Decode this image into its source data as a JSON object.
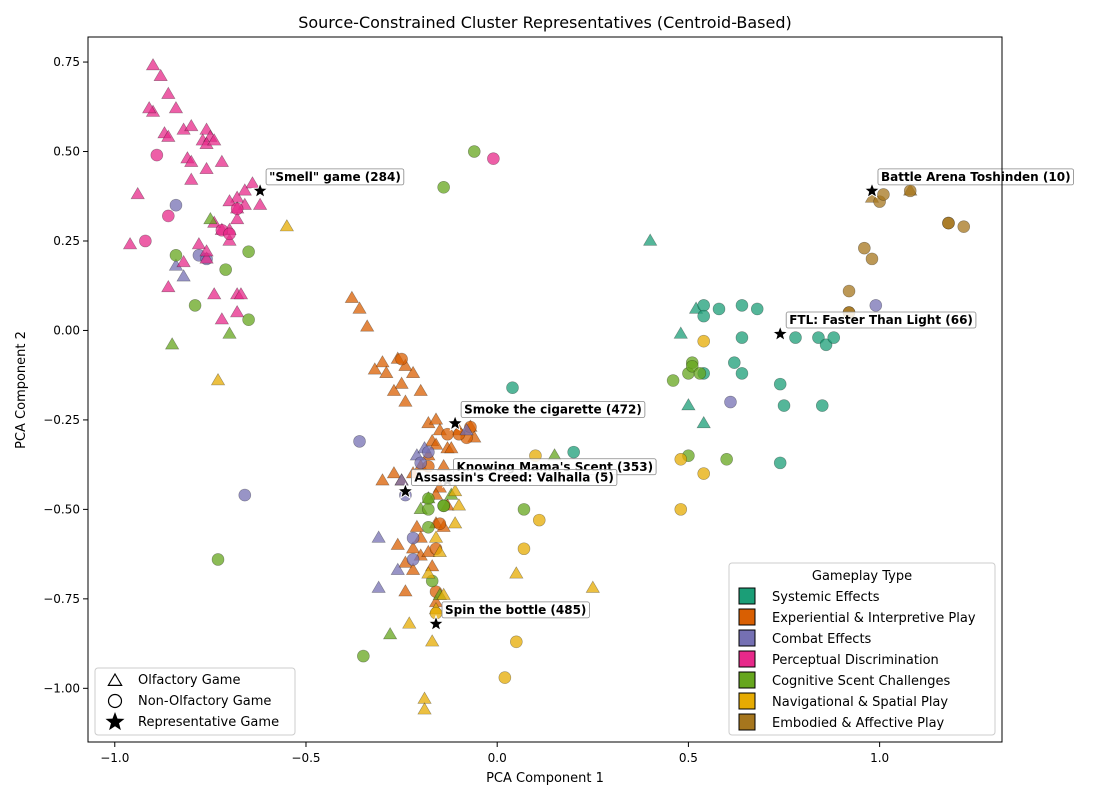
{
  "chart_data": {
    "type": "scatter",
    "title": "Source-Constrained Cluster Representatives (Centroid-Based)",
    "xlabel": "PCA Component 1",
    "ylabel": "PCA Component 2",
    "xlim": [
      -1.07,
      1.32
    ],
    "ylim": [
      -1.15,
      0.82
    ],
    "xticks": [
      "−1.0",
      "−0.5",
      "0.0",
      "0.5",
      "1.0"
    ],
    "xtick_values": [
      -1.0,
      -0.5,
      0.0,
      0.5,
      1.0
    ],
    "yticks": [
      "−1.00",
      "−0.75",
      "−0.50",
      "−0.25",
      "0.00",
      "0.25",
      "0.50",
      "0.75"
    ],
    "ytick_values": [
      -1.0,
      -0.75,
      -0.5,
      -0.25,
      0.0,
      0.25,
      0.5,
      0.75
    ],
    "grid": false,
    "legend_gameplay": {
      "title": "Gameplay Type",
      "placement": "bottom-right",
      "items": [
        {
          "label": "Systemic Effects",
          "color": "#1b9e77"
        },
        {
          "label": "Experiential & Interpretive Play",
          "color": "#d95f02"
        },
        {
          "label": "Combat Effects",
          "color": "#7570b3"
        },
        {
          "label": "Perceptual Discrimination",
          "color": "#e7298a"
        },
        {
          "label": "Cognitive Scent Challenges",
          "color": "#66a61e"
        },
        {
          "label": "Navigational & Spatial Play",
          "color": "#e6ab02"
        },
        {
          "label": "Embodied & Affective Play",
          "color": "#a6761d"
        }
      ]
    },
    "legend_markers": {
      "placement": "bottom-left",
      "items": [
        {
          "label": "Olfactory Game",
          "marker": "triangle"
        },
        {
          "label": "Non-Olfactory Game",
          "marker": "circle"
        },
        {
          "label": "Representative Game",
          "marker": "star"
        }
      ]
    },
    "series": [
      {
        "color": "#1b9e77",
        "triangles": [
          [
            0.4,
            0.25
          ],
          [
            0.48,
            -0.01
          ],
          [
            0.52,
            0.06
          ],
          [
            0.5,
            -0.21
          ],
          [
            0.54,
            -0.26
          ]
        ],
        "circles": [
          [
            0.54,
            0.07
          ],
          [
            0.54,
            0.04
          ],
          [
            0.58,
            0.06
          ],
          [
            0.64,
            0.07
          ],
          [
            0.68,
            0.06
          ],
          [
            0.64,
            -0.02
          ],
          [
            0.62,
            -0.09
          ],
          [
            0.64,
            -0.12
          ],
          [
            0.78,
            -0.02
          ],
          [
            0.84,
            -0.02
          ],
          [
            0.86,
            -0.04
          ],
          [
            0.88,
            -0.02
          ],
          [
            0.74,
            -0.15
          ],
          [
            0.75,
            -0.21
          ],
          [
            0.85,
            -0.21
          ],
          [
            0.74,
            -0.37
          ],
          [
            0.2,
            -0.34
          ],
          [
            0.04,
            -0.16
          ],
          [
            0.54,
            -0.12
          ]
        ]
      },
      {
        "color": "#d95f02",
        "triangles": [
          [
            -0.38,
            0.09
          ],
          [
            -0.36,
            0.06
          ],
          [
            -0.34,
            0.01
          ],
          [
            -0.3,
            -0.09
          ],
          [
            -0.32,
            -0.11
          ],
          [
            -0.29,
            -0.12
          ],
          [
            -0.26,
            -0.08
          ],
          [
            -0.24,
            -0.1
          ],
          [
            -0.22,
            -0.12
          ],
          [
            -0.25,
            -0.15
          ],
          [
            -0.27,
            -0.17
          ],
          [
            -0.24,
            -0.2
          ],
          [
            -0.2,
            -0.17
          ],
          [
            -0.18,
            -0.26
          ],
          [
            -0.16,
            -0.25
          ],
          [
            -0.17,
            -0.31
          ],
          [
            -0.15,
            -0.28
          ],
          [
            -0.13,
            -0.33
          ],
          [
            -0.18,
            -0.35
          ],
          [
            -0.14,
            -0.38
          ],
          [
            -0.2,
            -0.38
          ],
          [
            -0.22,
            -0.4
          ],
          [
            -0.25,
            -0.42
          ],
          [
            -0.27,
            -0.4
          ],
          [
            -0.3,
            -0.42
          ],
          [
            -0.16,
            -0.54
          ],
          [
            -0.14,
            -0.55
          ],
          [
            -0.2,
            -0.58
          ],
          [
            -0.21,
            -0.55
          ],
          [
            -0.22,
            -0.61
          ],
          [
            -0.2,
            -0.63
          ],
          [
            -0.24,
            -0.65
          ],
          [
            -0.22,
            -0.67
          ],
          [
            -0.26,
            -0.6
          ],
          [
            -0.17,
            -0.66
          ],
          [
            -0.24,
            -0.73
          ],
          [
            -0.16,
            -0.76
          ],
          [
            -0.18,
            -0.62
          ],
          [
            -0.16,
            -0.32
          ],
          [
            -0.12,
            -0.33
          ],
          [
            -0.06,
            -0.3
          ],
          [
            -0.1,
            -0.28
          ],
          [
            -0.07,
            -0.27
          ],
          [
            -0.15,
            -0.44
          ],
          [
            -0.16,
            -0.46
          ],
          [
            -0.13,
            -0.49
          ]
        ],
        "circles": [
          [
            -0.25,
            -0.08
          ],
          [
            -0.07,
            -0.27
          ],
          [
            -0.18,
            -0.38
          ],
          [
            -0.08,
            -0.3
          ],
          [
            -0.15,
            -0.54
          ],
          [
            -0.16,
            -0.61
          ],
          [
            -0.16,
            -0.73
          ],
          [
            -0.1,
            -0.29
          ],
          [
            -0.13,
            -0.29
          ]
        ]
      },
      {
        "color": "#7570b3",
        "triangles": [
          [
            -0.84,
            0.18
          ],
          [
            -0.82,
            0.15
          ],
          [
            -0.21,
            -0.35
          ],
          [
            -0.19,
            -0.33
          ],
          [
            -0.25,
            -0.42
          ],
          [
            -0.31,
            -0.58
          ],
          [
            -0.26,
            -0.67
          ],
          [
            -0.31,
            -0.72
          ],
          [
            -0.08,
            -0.28
          ]
        ],
        "circles": [
          [
            -0.84,
            0.35
          ],
          [
            -0.78,
            0.21
          ],
          [
            -0.76,
            0.2
          ],
          [
            -0.36,
            -0.31
          ],
          [
            -0.66,
            -0.46
          ],
          [
            -0.2,
            -0.37
          ],
          [
            -0.18,
            -0.34
          ],
          [
            -0.24,
            -0.46
          ],
          [
            -0.22,
            -0.64
          ],
          [
            -0.22,
            -0.58
          ],
          [
            0.61,
            -0.2
          ],
          [
            0.99,
            0.07
          ]
        ]
      },
      {
        "color": "#e7298a",
        "triangles": [
          [
            -0.9,
            0.74
          ],
          [
            -0.88,
            0.71
          ],
          [
            -0.86,
            0.66
          ],
          [
            -0.84,
            0.62
          ],
          [
            -0.9,
            0.61
          ],
          [
            -0.87,
            0.55
          ],
          [
            -0.86,
            0.54
          ],
          [
            -0.82,
            0.56
          ],
          [
            -0.8,
            0.57
          ],
          [
            -0.81,
            0.48
          ],
          [
            -0.8,
            0.47
          ],
          [
            -0.76,
            0.56
          ],
          [
            -0.77,
            0.53
          ],
          [
            -0.75,
            0.54
          ],
          [
            -0.76,
            0.52
          ],
          [
            -0.74,
            0.53
          ],
          [
            -0.72,
            0.47
          ],
          [
            -0.76,
            0.45
          ],
          [
            -0.8,
            0.42
          ],
          [
            -0.64,
            0.41
          ],
          [
            -0.66,
            0.39
          ],
          [
            -0.68,
            0.37
          ],
          [
            -0.7,
            0.36
          ],
          [
            -0.66,
            0.35
          ],
          [
            -0.62,
            0.35
          ],
          [
            -0.68,
            0.34
          ],
          [
            -0.7,
            0.28
          ],
          [
            -0.72,
            0.28
          ],
          [
            -0.74,
            0.3
          ],
          [
            -0.68,
            0.31
          ],
          [
            -0.7,
            0.25
          ],
          [
            -0.78,
            0.24
          ],
          [
            -0.76,
            0.2
          ],
          [
            -0.76,
            0.22
          ],
          [
            -0.82,
            0.19
          ],
          [
            -0.94,
            0.38
          ],
          [
            -0.96,
            0.24
          ],
          [
            -0.86,
            0.12
          ],
          [
            -0.74,
            0.1
          ],
          [
            -0.68,
            0.1
          ],
          [
            -0.67,
            0.1
          ],
          [
            -0.72,
            0.03
          ],
          [
            -0.68,
            0.05
          ],
          [
            -0.91,
            0.62
          ]
        ],
        "circles": [
          [
            -0.89,
            0.49
          ],
          [
            -0.86,
            0.32
          ],
          [
            -0.92,
            0.25
          ],
          [
            -0.68,
            0.34
          ],
          [
            -0.72,
            0.28
          ],
          [
            -0.7,
            0.27
          ],
          [
            -0.01,
            0.48
          ]
        ]
      },
      {
        "color": "#66a61e",
        "triangles": [
          [
            -0.75,
            0.31
          ],
          [
            -0.85,
            -0.04
          ],
          [
            -0.7,
            -0.01
          ],
          [
            -0.2,
            -0.5
          ],
          [
            -0.18,
            -0.47
          ],
          [
            -0.12,
            -0.46
          ],
          [
            0.15,
            -0.35
          ],
          [
            -0.28,
            -0.85
          ],
          [
            -0.15,
            -0.74
          ]
        ],
        "circles": [
          [
            -0.06,
            0.5
          ],
          [
            -0.14,
            0.4
          ],
          [
            -0.84,
            0.21
          ],
          [
            -0.71,
            0.17
          ],
          [
            -0.65,
            0.22
          ],
          [
            -0.79,
            0.07
          ],
          [
            -0.65,
            0.03
          ],
          [
            -0.18,
            -0.47
          ],
          [
            -0.18,
            -0.5
          ],
          [
            -0.14,
            -0.49
          ],
          [
            -0.18,
            -0.55
          ],
          [
            -0.17,
            -0.7
          ],
          [
            -0.35,
            -0.91
          ],
          [
            -0.73,
            -0.64
          ],
          [
            0.07,
            -0.5
          ],
          [
            0.46,
            -0.14
          ],
          [
            0.5,
            -0.12
          ],
          [
            0.51,
            -0.09
          ],
          [
            0.51,
            -0.1
          ],
          [
            0.53,
            -0.12
          ],
          [
            0.5,
            -0.35
          ],
          [
            0.6,
            -0.36
          ],
          [
            -0.14,
            -0.49
          ]
        ]
      },
      {
        "color": "#e6ab02",
        "triangles": [
          [
            -0.55,
            0.29
          ],
          [
            -0.73,
            -0.14
          ],
          [
            -0.11,
            -0.45
          ],
          [
            -0.1,
            -0.49
          ],
          [
            -0.11,
            -0.54
          ],
          [
            -0.16,
            -0.58
          ],
          [
            -0.18,
            -0.68
          ],
          [
            -0.23,
            -0.82
          ],
          [
            -0.17,
            -0.87
          ],
          [
            -0.19,
            -1.03
          ],
          [
            -0.19,
            -1.06
          ],
          [
            -0.14,
            -0.74
          ],
          [
            -0.16,
            -0.78
          ],
          [
            0.05,
            -0.68
          ],
          [
            0.25,
            -0.72
          ],
          [
            -0.15,
            -0.62
          ]
        ],
        "circles": [
          [
            0.1,
            -0.35
          ],
          [
            0.11,
            -0.53
          ],
          [
            0.07,
            -0.61
          ],
          [
            0.05,
            -0.87
          ],
          [
            0.02,
            -0.97
          ],
          [
            0.48,
            -0.36
          ],
          [
            0.48,
            -0.5
          ],
          [
            0.54,
            -0.4
          ],
          [
            0.54,
            -0.03
          ],
          [
            -0.16,
            -0.79
          ]
        ]
      },
      {
        "color": "#a6761d",
        "triangles": [
          [
            0.98,
            0.37
          ],
          [
            1.08,
            0.39
          ]
        ],
        "circles": [
          [
            1.0,
            0.36
          ],
          [
            1.01,
            0.38
          ],
          [
            1.08,
            0.39
          ],
          [
            1.18,
            0.3
          ],
          [
            1.18,
            0.3
          ],
          [
            1.22,
            0.29
          ],
          [
            0.96,
            0.23
          ],
          [
            0.98,
            0.2
          ],
          [
            0.92,
            0.11
          ],
          [
            0.92,
            0.05
          ],
          [
            0.92,
            0.05
          ]
        ]
      }
    ],
    "representatives": [
      {
        "label": "\"Smell\" game (284)",
        "x": -0.62,
        "y": 0.39
      },
      {
        "label": "Battle Arena Toshinden (10)",
        "x": 0.98,
        "y": 0.39
      },
      {
        "label": "FTL: Faster Than Light (66)",
        "x": 0.74,
        "y": -0.01
      },
      {
        "label": "Smoke the cigarette (472)",
        "x": -0.11,
        "y": -0.26
      },
      {
        "label": "Knowing Mama's Scent (353)",
        "x": -0.13,
        "y": -0.42
      },
      {
        "label": "Assassin's Creed: Valhalla (5)",
        "x": -0.24,
        "y": -0.45
      },
      {
        "label": "Spin the bottle (485)",
        "x": -0.16,
        "y": -0.82
      }
    ]
  }
}
